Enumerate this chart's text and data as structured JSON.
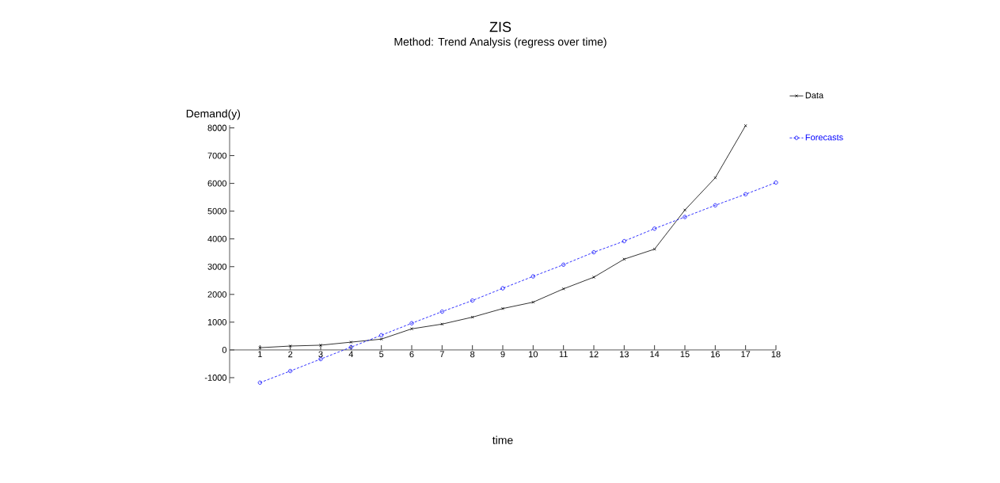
{
  "chart_data": {
    "type": "line",
    "title": "ZIS",
    "subtitle": "Method: Trend Analysis (regress over time)",
    "xlabel": "time",
    "ylabel": "Demand(y)",
    "x": [
      1,
      2,
      3,
      4,
      5,
      6,
      7,
      8,
      9,
      10,
      11,
      12,
      13,
      14,
      15,
      16,
      17,
      18
    ],
    "xlim": [
      0,
      18
    ],
    "xticks": [
      1,
      2,
      3,
      4,
      5,
      6,
      7,
      8,
      9,
      10,
      11,
      12,
      13,
      14,
      15,
      16,
      17,
      18
    ],
    "ylim": [
      -1200,
      8100
    ],
    "yticks": [
      -1000,
      0,
      1000,
      2000,
      3000,
      4000,
      5000,
      6000,
      7000,
      8000
    ],
    "grid": false,
    "legend": "top right",
    "series": [
      {
        "name": "Data",
        "color": "#000000",
        "marker": "cross",
        "line_style": "solid",
        "values": [
          80,
          140,
          170,
          280,
          390,
          760,
          930,
          1180,
          1490,
          1720,
          2200,
          2620,
          3270,
          3630,
          5040,
          6200,
          8080,
          null
        ]
      },
      {
        "name": "Forecasts",
        "color": "#0000ff",
        "marker": "circle",
        "line_style": "dotted",
        "values": [
          -1180,
          -760,
          -330,
          100,
          530,
          960,
          1380,
          1780,
          2220,
          2650,
          3070,
          3520,
          3920,
          4370,
          4790,
          5210,
          5610,
          6030
        ]
      }
    ]
  }
}
